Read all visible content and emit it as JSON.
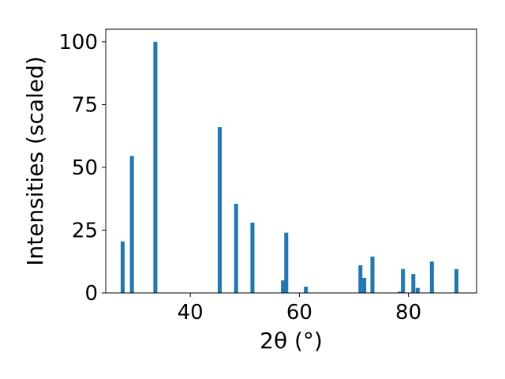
{
  "chart_data": {
    "type": "bar",
    "xlabel": "2θ (°)",
    "ylabel": "Intensities (scaled)",
    "xlim": [
      24.5,
      92.5
    ],
    "ylim": [
      0,
      105
    ],
    "xticks": [
      40,
      60,
      80
    ],
    "yticks": [
      0,
      25,
      50,
      75,
      100
    ],
    "bar_color": "#1f77b4",
    "x": [
      27.6,
      29.3,
      33.6,
      45.4,
      48.4,
      51.4,
      57.0,
      57.6,
      61.2,
      71.2,
      71.9,
      73.4,
      78.4,
      79.0,
      80.9,
      81.7,
      84.3,
      88.8
    ],
    "values": [
      20.5,
      54.5,
      100,
      66,
      35.5,
      28,
      5,
      24,
      2.5,
      11,
      6,
      14.5,
      0.5,
      9.5,
      7.5,
      2,
      12.5,
      9.5
    ]
  }
}
